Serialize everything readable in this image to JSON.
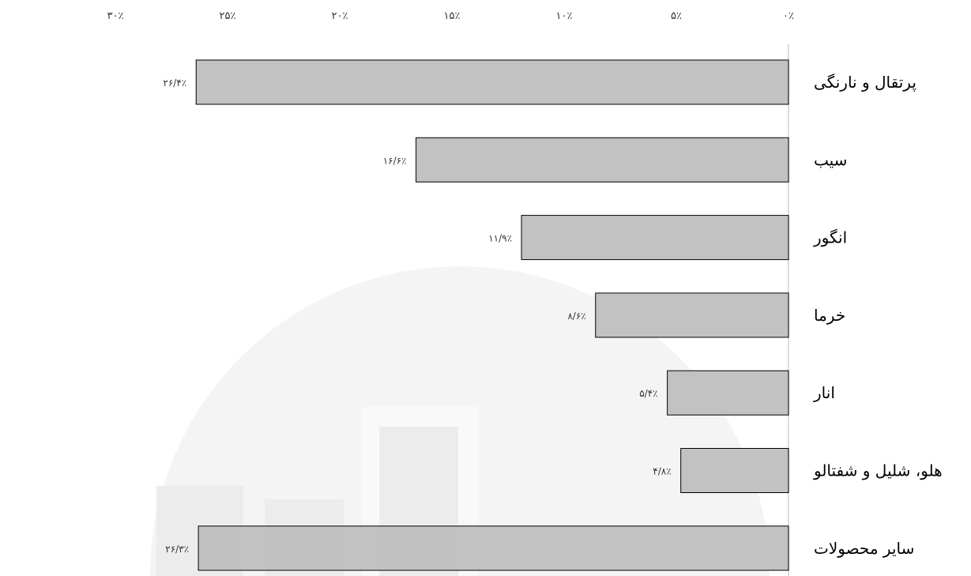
{
  "chart_data": {
    "type": "bar",
    "orientation": "horizontal",
    "x_axis_direction": "right-to-left",
    "tick_position": "top",
    "categories": [
      "پرتقال و نارنگی",
      "سیب",
      "انگور",
      "خرما",
      "انار",
      "هلو، شلیل و شفتالو",
      "سایر محصولات"
    ],
    "values": [
      26.4,
      16.6,
      11.9,
      8.6,
      5.4,
      4.8,
      26.3
    ],
    "value_labels": [
      "۲۶/۴٪",
      "۱۶/۶٪",
      "۱۱/۹٪",
      "۸/۶٪",
      "۵/۴٪",
      "۴/۸٪",
      "۲۶/۳٪"
    ],
    "xlim": [
      0,
      30
    ],
    "ticks": [
      0,
      5,
      10,
      15,
      20,
      25,
      30
    ],
    "tick_labels": [
      "۰٪",
      "۵٪",
      "۱۰٪",
      "۱۵٪",
      "۲۰٪",
      "۲۵٪",
      "۳۰٪"
    ],
    "grid": false,
    "bar_color": "#bfbfbf",
    "bar_edge_color": "#000000",
    "watermark_color": "#ececec"
  }
}
